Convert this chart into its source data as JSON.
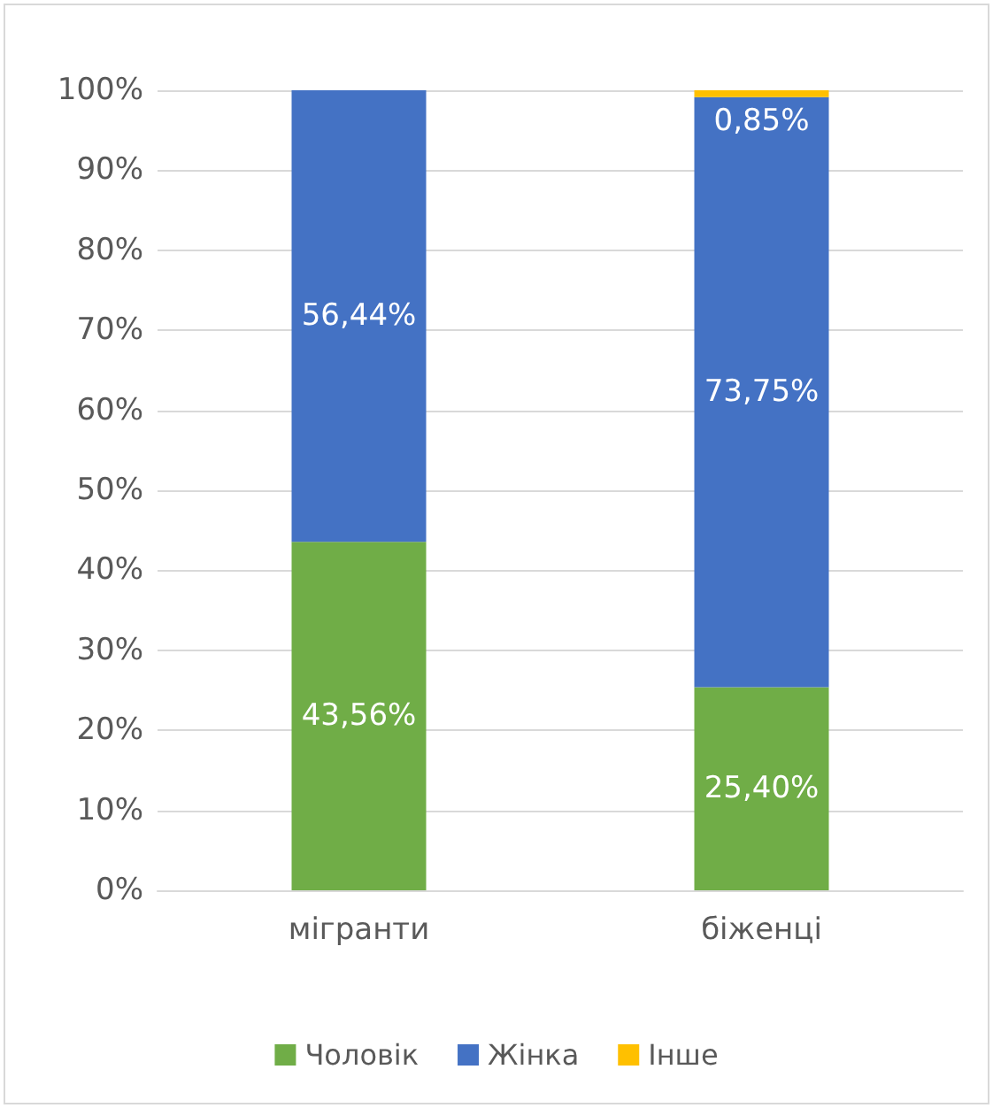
{
  "chart_data": {
    "type": "bar",
    "stacked": true,
    "categories": [
      "мігранти",
      "біженці"
    ],
    "series": [
      {
        "name": "Чоловік",
        "color": "#70ad47",
        "values": [
          43.56,
          25.4
        ],
        "value_labels": [
          "43,56%",
          "25,40%"
        ]
      },
      {
        "name": "Жінка",
        "color": "#4472c4",
        "values": [
          56.44,
          73.75
        ],
        "value_labels": [
          "56,44%",
          "73,75%"
        ]
      },
      {
        "name": "Інше",
        "color": "#ffc000",
        "values": [
          0,
          0.85
        ],
        "value_labels": [
          null,
          "0,85%"
        ]
      }
    ],
    "ylim": [
      0,
      100
    ],
    "yticks": [
      {
        "value": 0,
        "label": "0%"
      },
      {
        "value": 10,
        "label": "10%"
      },
      {
        "value": 20,
        "label": "20%"
      },
      {
        "value": 30,
        "label": "30%"
      },
      {
        "value": 40,
        "label": "40%"
      },
      {
        "value": 50,
        "label": "50%"
      },
      {
        "value": 60,
        "label": "60%"
      },
      {
        "value": 70,
        "label": "70%"
      },
      {
        "value": 80,
        "label": "80%"
      },
      {
        "value": 90,
        "label": "90%"
      },
      {
        "value": 100,
        "label": "100%"
      }
    ],
    "grid": "y",
    "legend": "bottom"
  }
}
